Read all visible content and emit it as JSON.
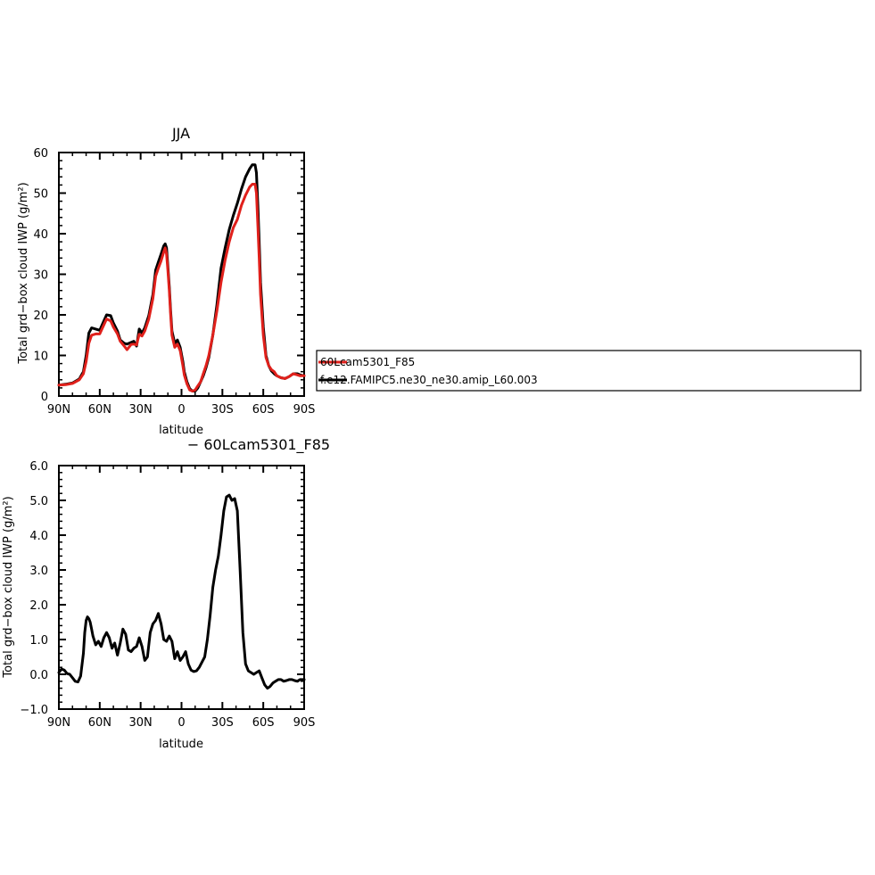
{
  "colors": {
    "red": "#e0201b",
    "black": "#000000"
  },
  "chart_data": [
    {
      "type": "line",
      "title": "JJA",
      "xlabel": "latitude",
      "ylabel": "Total grd−box cloud IWP (g/m²)",
      "xlim": [
        -90,
        90
      ],
      "ylim": [
        0,
        60
      ],
      "x_ticks": [
        -90,
        -60,
        -30,
        0,
        30,
        60,
        90
      ],
      "x_tick_labels": [
        "90N",
        "60N",
        "30N",
        "0",
        "30S",
        "60S",
        "90S"
      ],
      "y_ticks": [
        0,
        10,
        20,
        30,
        40,
        50,
        60
      ],
      "y_tick_labels": [
        "0",
        "10",
        "20",
        "30",
        "40",
        "50",
        "60"
      ],
      "legend": {
        "placement": "right",
        "entries": [
          "60Lcam5301_F85",
          "f.e12.FAMIPC5.ne30_ne30.amip_L60.003"
        ]
      },
      "series": [
        {
          "name": "60Lcam5301_F85",
          "color": "red",
          "x": [
            -90,
            -85,
            -80,
            -75,
            -72,
            -70,
            -68,
            -66,
            -63,
            -60,
            -57,
            -55,
            -52,
            -50,
            -47,
            -45,
            -42,
            -40,
            -37,
            -35,
            -33,
            -31,
            -29,
            -27,
            -24,
            -21,
            -19,
            -17,
            -15,
            -13,
            -12,
            -11,
            -10,
            -9,
            -8,
            -7,
            -5,
            -3,
            -1,
            1,
            2,
            4,
            6,
            8,
            10,
            12,
            14,
            16,
            18,
            20,
            23,
            26,
            29,
            32,
            35,
            38,
            41,
            44,
            47,
            50,
            52,
            54,
            55,
            56,
            57,
            58,
            60,
            62,
            64,
            66,
            68,
            70,
            73,
            76,
            79,
            82,
            85,
            87,
            90
          ],
          "y": [
            2.7,
            2.8,
            3.1,
            4.0,
            5.5,
            8.5,
            13.0,
            15.0,
            15.3,
            15.3,
            17.5,
            19.0,
            18.5,
            17.0,
            15.3,
            13.5,
            12.3,
            11.4,
            12.7,
            12.8,
            12.6,
            15.2,
            14.8,
            16.0,
            19.0,
            24.0,
            29.5,
            31.5,
            33.3,
            35.5,
            36.5,
            35.0,
            31.0,
            26.0,
            20.0,
            15.0,
            12.0,
            12.8,
            11.2,
            7.5,
            5.2,
            3.0,
            1.5,
            1.2,
            1.5,
            2.5,
            3.5,
            5.5,
            7.5,
            10.0,
            15.0,
            21.0,
            28.0,
            33.5,
            38.0,
            41.5,
            43.5,
            47.0,
            49.5,
            51.5,
            52.2,
            52.2,
            50.0,
            42.0,
            34.0,
            25.0,
            15.0,
            9.5,
            7.5,
            6.5,
            6.0,
            5.0,
            4.5,
            4.3,
            4.8,
            5.5,
            5.2,
            5.0,
            5.0
          ]
        },
        {
          "name": "f.e12.FAMIPC5.ne30_ne30.amip_L60.003",
          "color": "black",
          "x": [
            -90,
            -85,
            -80,
            -75,
            -72,
            -70,
            -68,
            -66,
            -63,
            -60,
            -57,
            -55,
            -52,
            -50,
            -47,
            -45,
            -42,
            -40,
            -37,
            -35,
            -33,
            -31,
            -29,
            -27,
            -24,
            -21,
            -19,
            -17,
            -15,
            -13,
            -12,
            -11,
            -10,
            -9,
            -8,
            -7,
            -5,
            -3,
            -1,
            1,
            2,
            4,
            6,
            8,
            10,
            12,
            14,
            16,
            18,
            20,
            23,
            26,
            29,
            32,
            35,
            38,
            41,
            44,
            47,
            50,
            52,
            54,
            55,
            56,
            57,
            58,
            60,
            62,
            64,
            66,
            68,
            70,
            73,
            76,
            79,
            82,
            85,
            87,
            90
          ],
          "y": [
            2.7,
            2.9,
            3.2,
            4.2,
            6.0,
            10.0,
            15.5,
            16.8,
            16.5,
            16.2,
            18.5,
            20.0,
            19.8,
            18.0,
            16.0,
            13.8,
            13.0,
            12.8,
            13.2,
            13.5,
            12.3,
            16.5,
            15.5,
            16.8,
            19.8,
            25.0,
            31.0,
            33.0,
            35.0,
            37.0,
            37.5,
            36.5,
            32.0,
            27.0,
            21.0,
            16.0,
            13.0,
            13.8,
            12.0,
            8.5,
            6.0,
            3.5,
            1.8,
            1.2,
            1.2,
            2.0,
            3.5,
            5.0,
            7.0,
            9.5,
            15.0,
            22.5,
            31.5,
            36.5,
            41.0,
            44.5,
            47.5,
            51.0,
            54.0,
            56.0,
            57.0,
            57.0,
            55.0,
            47.0,
            38.0,
            28.0,
            17.0,
            10.0,
            7.5,
            6.2,
            5.5,
            5.0,
            4.5,
            4.3,
            4.8,
            5.5,
            5.5,
            5.2,
            5.0
          ]
        }
      ]
    },
    {
      "type": "line",
      "title": "− 60Lcam5301_F85",
      "xlabel": "latitude",
      "ylabel": "Total grd−box cloud IWP (g/m²)",
      "xlim": [
        -90,
        90
      ],
      "ylim": [
        -1.0,
        6.0
      ],
      "x_ticks": [
        -90,
        -60,
        -30,
        0,
        30,
        60,
        90
      ],
      "x_tick_labels": [
        "90N",
        "60N",
        "30N",
        "0",
        "30S",
        "60S",
        "90S"
      ],
      "y_ticks": [
        -1.0,
        0.0,
        1.0,
        2.0,
        3.0,
        4.0,
        5.0,
        6.0
      ],
      "y_tick_labels": [
        "−1.0",
        "0.0",
        "1.0",
        "2.0",
        "3.0",
        "4.0",
        "5.0",
        "6.0"
      ],
      "series": [
        {
          "color": "black",
          "x": [
            -90,
            -88,
            -86,
            -84,
            -82,
            -80,
            -78,
            -76,
            -74,
            -72,
            -71,
            -70,
            -69,
            -68,
            -67,
            -66,
            -65,
            -63,
            -61,
            -59,
            -57,
            -55,
            -53,
            -51,
            -49,
            -47,
            -45,
            -43,
            -41,
            -39,
            -37,
            -35,
            -33,
            -31,
            -29,
            -27,
            -25,
            -23,
            -21,
            -19,
            -17,
            -15,
            -13,
            -11,
            -9,
            -7,
            -5,
            -3,
            -1,
            1,
            3,
            5,
            7,
            9,
            11,
            13,
            15,
            17,
            19,
            21,
            23,
            25,
            27,
            29,
            31,
            33,
            35,
            37,
            39,
            41,
            43,
            45,
            47,
            49,
            51,
            53,
            55,
            57,
            59,
            61,
            63,
            65,
            67,
            69,
            71,
            73,
            75,
            77,
            79,
            81,
            83,
            85,
            87,
            89,
            90
          ],
          "y": [
            0.05,
            0.15,
            0.12,
            0.02,
            0.0,
            -0.1,
            -0.2,
            -0.22,
            -0.05,
            0.6,
            1.2,
            1.55,
            1.65,
            1.6,
            1.5,
            1.3,
            1.1,
            0.85,
            0.95,
            0.8,
            1.05,
            1.2,
            1.05,
            0.75,
            0.9,
            0.55,
            0.9,
            1.3,
            1.15,
            0.7,
            0.65,
            0.75,
            0.8,
            1.05,
            0.8,
            0.4,
            0.5,
            1.2,
            1.45,
            1.55,
            1.75,
            1.45,
            1.0,
            0.95,
            1.1,
            0.95,
            0.45,
            0.65,
            0.4,
            0.5,
            0.65,
            0.3,
            0.12,
            0.08,
            0.1,
            0.2,
            0.35,
            0.5,
            1.0,
            1.7,
            2.5,
            3.0,
            3.4,
            4.0,
            4.7,
            5.1,
            5.15,
            5.0,
            5.05,
            4.7,
            3.0,
            1.2,
            0.3,
            0.1,
            0.05,
            0.0,
            0.05,
            0.1,
            -0.1,
            -0.3,
            -0.4,
            -0.35,
            -0.25,
            -0.2,
            -0.15,
            -0.15,
            -0.2,
            -0.18,
            -0.15,
            -0.15,
            -0.18,
            -0.2,
            -0.15,
            -0.15,
            -0.15
          ]
        }
      ]
    }
  ]
}
